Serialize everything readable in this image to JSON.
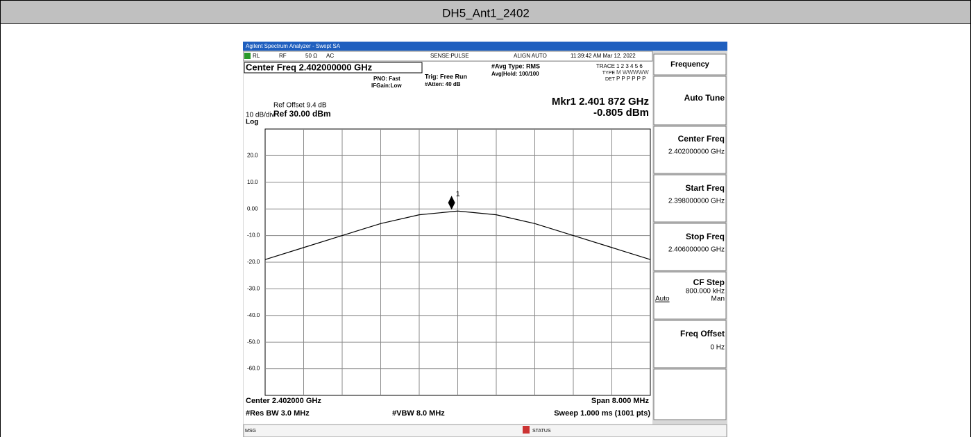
{
  "table": {
    "header": "DH5_Ant1_2402"
  },
  "analyzer": {
    "title_bar": "Agilent Spectrum Analyzer - Swept SA",
    "status": {
      "rl": "RL",
      "rf": "RF",
      "impedance": "50 Ω",
      "coupling": "AC",
      "sense": "SENSE:PULSE",
      "align": "ALIGN AUTO",
      "time": "11:39:42 AM Mar 12, 2022"
    },
    "center_freq_box": "Center Freq 2.402000000 GHz",
    "pno": "PNO: Fast",
    "ifgain": "IFGain:Low",
    "trig": "Trig: Free Run",
    "atten": "#Atten: 40 dB",
    "avg_type": "#Avg Type: RMS",
    "avg_hold": "Avg|Hold: 100/100",
    "trace_row": {
      "label": "TRACE",
      "value": "1 2 3 4 5 6"
    },
    "type_row": {
      "label": "TYPE",
      "value": "M WWWWW"
    },
    "det_row": {
      "label": "DET",
      "value": "P P P P P P"
    },
    "ref_offset": "Ref Offset 9.4 dB",
    "scale": "10 dB/div",
    "ref_level": "Ref 30.00 dBm",
    "log": "Log",
    "marker_freq": "Mkr1 2.401 872 GHz",
    "marker_level": "-0.805 dBm",
    "center": "Center 2.402000 GHz",
    "span": "Span 8.000 MHz",
    "rbw": "#Res BW 3.0 MHz",
    "vbw": "#VBW 8.0 MHz",
    "sweep": "Sweep  1.000 ms (1001 pts)",
    "msg": "MSG",
    "status_label": "STATUS",
    "softkeys": {
      "header": "Frequency",
      "auto_tune": "Auto Tune",
      "center_freq": {
        "label": "Center Freq",
        "value": "2.402000000 GHz"
      },
      "start_freq": {
        "label": "Start Freq",
        "value": "2.398000000 GHz"
      },
      "stop_freq": {
        "label": "Stop Freq",
        "value": "2.406000000 GHz"
      },
      "cf_step": {
        "label": "CF Step",
        "value": "800.000 kHz",
        "auto": "Auto",
        "man": "Man"
      },
      "freq_offset": {
        "label": "Freq Offset",
        "value": "0 Hz"
      }
    }
  },
  "plot": {
    "xlim": [
      2.398,
      2.406
    ],
    "ylim": [
      -70,
      30
    ],
    "yticks": [
      {
        "value": 20,
        "label": "20.0"
      },
      {
        "value": 10,
        "label": "10.0"
      },
      {
        "value": 0,
        "label": "0.00"
      },
      {
        "value": -10,
        "label": "-10.0"
      },
      {
        "value": -20,
        "label": "-20.0"
      },
      {
        "value": -30,
        "label": "-30.0"
      },
      {
        "value": -40,
        "label": "-40.0"
      },
      {
        "value": -50,
        "label": "-50.0"
      },
      {
        "value": -60,
        "label": "-60.0"
      }
    ],
    "trace": {
      "x": [
        2.398,
        2.3988,
        2.3996,
        2.4004,
        2.4012,
        2.402,
        2.4028,
        2.4036,
        2.4044,
        2.4052,
        2.406
      ],
      "y": [
        -19,
        -14.5,
        -10,
        -5.5,
        -2.2,
        -0.8,
        -2.2,
        -5.5,
        -10,
        -14.5,
        -19
      ]
    },
    "marker": {
      "x": 2.401872,
      "y": -0.805,
      "label": "1"
    }
  }
}
